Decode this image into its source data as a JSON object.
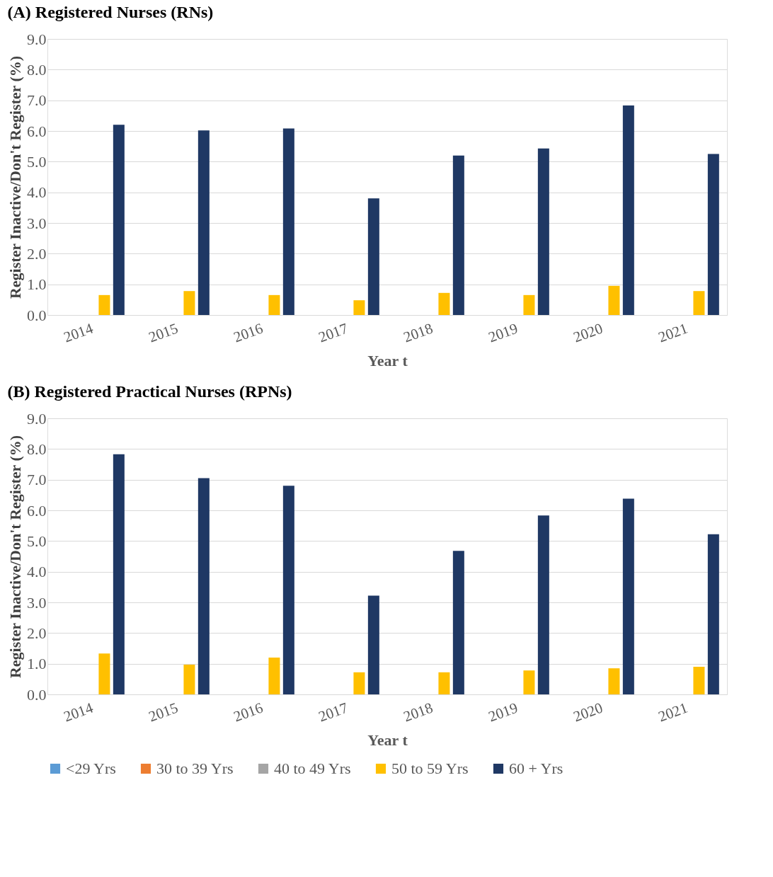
{
  "chart_data": [
    {
      "type": "bar",
      "title": "(A)  Registered Nurses (RNs)",
      "xlabel": "Year t",
      "ylabel": "Register Inactive/Don't Register (%)",
      "categories": [
        "2014",
        "2015",
        "2016",
        "2017",
        "2018",
        "2019",
        "2020",
        "2021"
      ],
      "series": [
        {
          "color": "#5b9bd5",
          "values": [
            0,
            0,
            0,
            0,
            0,
            0,
            0,
            0
          ]
        },
        {
          "color": "#ed7d31",
          "values": [
            0,
            0,
            0,
            0,
            0,
            0,
            0,
            0
          ]
        },
        {
          "color": "#a5a5a5",
          "values": [
            0,
            0,
            0,
            0,
            0,
            0,
            0,
            0
          ]
        },
        {
          "color": "#ffc000",
          "values": [
            0.65,
            0.78,
            0.65,
            0.48,
            0.72,
            0.65,
            0.95,
            0.78
          ]
        },
        {
          "color": "#1f3864",
          "values": [
            6.2,
            6.02,
            6.08,
            3.8,
            5.2,
            5.43,
            6.83,
            5.25
          ]
        }
      ],
      "ylim": [
        0,
        9
      ],
      "yticks": [
        {
          "value": 0,
          "label": "0.0"
        },
        {
          "value": 1,
          "label": "1.0"
        },
        {
          "value": 2,
          "label": "2.0"
        },
        {
          "value": 3,
          "label": "3.0"
        },
        {
          "value": 4,
          "label": "4.0"
        },
        {
          "value": 5,
          "label": "5.0"
        },
        {
          "value": 6,
          "label": "6.0"
        },
        {
          "value": 7,
          "label": "7.0"
        },
        {
          "value": 8,
          "label": "8.0"
        },
        {
          "value": 9,
          "label": "9.0"
        }
      ],
      "grid": "y"
    },
    {
      "type": "bar",
      "title": "(B)  Registered Practical Nurses (RPNs)",
      "xlabel": "Year t",
      "ylabel": "Register Inactive/Don't Register (%)",
      "categories": [
        "2014",
        "2015",
        "2016",
        "2017",
        "2018",
        "2019",
        "2020",
        "2021"
      ],
      "series": [
        {
          "name": "<29 Yrs",
          "color": "#5b9bd5",
          "values": [
            0,
            0,
            0,
            0,
            0,
            0,
            0,
            0
          ]
        },
        {
          "name": "30 to 39 Yrs",
          "color": "#ed7d31",
          "values": [
            0,
            0,
            0,
            0,
            0,
            0,
            0,
            0
          ]
        },
        {
          "name": "40 to 49 Yrs",
          "color": "#a5a5a5",
          "values": [
            0,
            0,
            0,
            0,
            0,
            0,
            0,
            0
          ]
        },
        {
          "name": "50 to 59 Yrs",
          "color": "#ffc000",
          "values": [
            1.33,
            0.97,
            1.2,
            0.72,
            0.72,
            0.78,
            0.85,
            0.9
          ]
        },
        {
          "name": "60 + Yrs",
          "color": "#1f3864",
          "values": [
            7.83,
            7.05,
            6.8,
            3.22,
            4.68,
            5.83,
            6.38,
            5.22
          ]
        }
      ],
      "ylim": [
        0,
        9
      ],
      "yticks": [
        {
          "value": 0,
          "label": "0.0"
        },
        {
          "value": 1,
          "label": "1.0"
        },
        {
          "value": 2,
          "label": "2.0"
        },
        {
          "value": 3,
          "label": "3.0"
        },
        {
          "value": 4,
          "label": "4.0"
        },
        {
          "value": 5,
          "label": "5.0"
        },
        {
          "value": 6,
          "label": "6.0"
        },
        {
          "value": 7,
          "label": "7.0"
        },
        {
          "value": 8,
          "label": "8.0"
        },
        {
          "value": 9,
          "label": "9.0"
        }
      ],
      "grid": "y",
      "legend": "bottom"
    }
  ]
}
